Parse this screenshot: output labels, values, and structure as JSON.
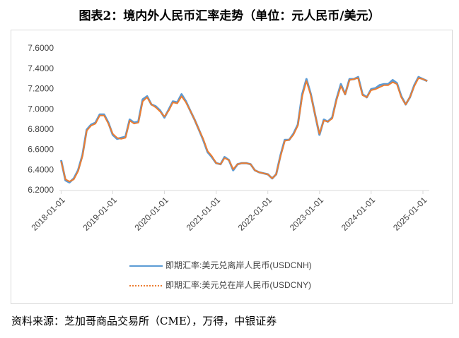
{
  "chart_data": {
    "type": "line",
    "title": "图表2：境内外人民币汇率走势（单位：元人民币/美元）",
    "source": "资料来源：芝加哥商品交易所（CME），万得，中银证券",
    "x": [
      "2018-01-01",
      "2018-02-01",
      "2018-03-01",
      "2018-04-01",
      "2018-05-01",
      "2018-06-01",
      "2018-07-01",
      "2018-08-01",
      "2018-09-01",
      "2018-10-01",
      "2018-11-01",
      "2018-12-01",
      "2019-01-01",
      "2019-02-01",
      "2019-03-01",
      "2019-04-01",
      "2019-05-01",
      "2019-06-01",
      "2019-07-01",
      "2019-08-01",
      "2019-09-01",
      "2019-10-01",
      "2019-11-01",
      "2019-12-01",
      "2020-01-01",
      "2020-02-01",
      "2020-03-01",
      "2020-04-01",
      "2020-05-01",
      "2020-06-01",
      "2020-07-01",
      "2020-08-01",
      "2020-09-01",
      "2020-10-01",
      "2020-11-01",
      "2020-12-01",
      "2021-01-01",
      "2021-02-01",
      "2021-03-01",
      "2021-04-01",
      "2021-05-01",
      "2021-06-01",
      "2021-07-01",
      "2021-08-01",
      "2021-09-01",
      "2021-10-01",
      "2021-11-01",
      "2021-12-01",
      "2022-01-01",
      "2022-02-01",
      "2022-03-01",
      "2022-04-01",
      "2022-05-01",
      "2022-06-01",
      "2022-07-01",
      "2022-08-01",
      "2022-09-01",
      "2022-10-01",
      "2022-11-01",
      "2022-12-01",
      "2023-01-01",
      "2023-02-01",
      "2023-03-01",
      "2023-04-01",
      "2023-05-01",
      "2023-06-01",
      "2023-07-01",
      "2023-08-01",
      "2023-09-01",
      "2023-10-01",
      "2023-11-01",
      "2023-12-01",
      "2024-01-01",
      "2024-02-01",
      "2024-03-01",
      "2024-04-01",
      "2024-05-01",
      "2024-06-01",
      "2024-07-01",
      "2024-08-01",
      "2024-09-01",
      "2024-10-01",
      "2024-11-01",
      "2024-12-01",
      "2025-01-01",
      "2025-02-01"
    ],
    "series": [
      {
        "name": "即期汇率:美元兑离岸人民币(USDCNH)",
        "color": "#5b9bd5",
        "values": [
          6.5,
          6.3,
          6.28,
          6.32,
          6.4,
          6.55,
          6.8,
          6.85,
          6.87,
          6.95,
          6.95,
          6.87,
          6.75,
          6.71,
          6.72,
          6.73,
          6.9,
          6.87,
          6.88,
          7.1,
          7.13,
          7.05,
          7.03,
          6.99,
          6.92,
          7.0,
          7.08,
          7.07,
          7.15,
          7.08,
          6.99,
          6.9,
          6.8,
          6.7,
          6.58,
          6.53,
          6.47,
          6.46,
          6.53,
          6.5,
          6.4,
          6.46,
          6.47,
          6.47,
          6.46,
          6.4,
          6.38,
          6.37,
          6.36,
          6.32,
          6.36,
          6.55,
          6.7,
          6.7,
          6.76,
          6.85,
          7.15,
          7.3,
          7.15,
          6.95,
          6.75,
          6.9,
          6.88,
          6.92,
          7.1,
          7.25,
          7.15,
          7.3,
          7.3,
          7.32,
          7.15,
          7.12,
          7.2,
          7.21,
          7.24,
          7.25,
          7.25,
          7.29,
          7.26,
          7.13,
          7.05,
          7.12,
          7.24,
          7.32,
          7.3,
          7.28
        ]
      },
      {
        "name": "即期汇率:美元兑在岸人民币(USDCNY)",
        "color": "#ed7d31",
        "values": [
          6.49,
          6.31,
          6.29,
          6.31,
          6.39,
          6.54,
          6.79,
          6.84,
          6.86,
          6.94,
          6.94,
          6.86,
          6.76,
          6.72,
          6.71,
          6.72,
          6.89,
          6.86,
          6.87,
          7.08,
          7.12,
          7.05,
          7.02,
          6.98,
          6.93,
          6.99,
          7.07,
          7.06,
          7.13,
          7.07,
          6.99,
          6.9,
          6.8,
          6.71,
          6.59,
          6.54,
          6.47,
          6.46,
          6.52,
          6.5,
          6.41,
          6.46,
          6.47,
          6.47,
          6.46,
          6.4,
          6.38,
          6.37,
          6.36,
          6.32,
          6.36,
          6.54,
          6.69,
          6.7,
          6.75,
          6.84,
          7.13,
          7.28,
          7.14,
          6.95,
          6.76,
          6.89,
          6.88,
          6.91,
          7.09,
          7.23,
          7.15,
          7.29,
          7.3,
          7.31,
          7.14,
          7.12,
          7.19,
          7.2,
          7.22,
          7.24,
          7.24,
          7.27,
          7.25,
          7.12,
          7.05,
          7.12,
          7.23,
          7.31,
          7.3,
          7.28
        ]
      }
    ],
    "xlim": [
      "2017-12-20",
      "2025-02-15"
    ],
    "xticks": [
      "2018-01-01",
      "2019-01-01",
      "2020-01-01",
      "2021-01-01",
      "2022-01-01",
      "2023-01-01",
      "2024-01-01",
      "2025-01-01"
    ],
    "ylim": [
      6.2,
      7.6
    ],
    "yticks": [
      {
        "value": 6.2,
        "label": "6.2000"
      },
      {
        "value": 6.4,
        "label": "6.4000"
      },
      {
        "value": 6.6,
        "label": "6.6000"
      },
      {
        "value": 6.8,
        "label": "6.8000"
      },
      {
        "value": 7.0,
        "label": "7.0000"
      },
      {
        "value": 7.2,
        "label": "7.2000"
      },
      {
        "value": 7.4,
        "label": "7.4000"
      },
      {
        "value": 7.6,
        "label": "7.6000"
      }
    ],
    "grid": false
  }
}
